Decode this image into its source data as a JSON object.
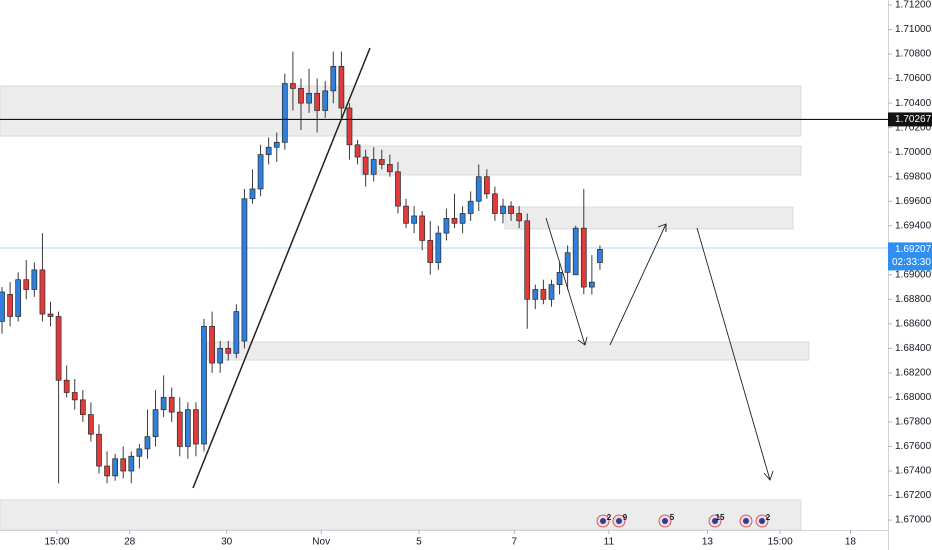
{
  "chart_data": {
    "type": "candlestick",
    "x": [
      0,
      1,
      2,
      3,
      4,
      5,
      6,
      7,
      8,
      9,
      10,
      11,
      12,
      13,
      14,
      15,
      16,
      17,
      18,
      19,
      20,
      21,
      22,
      23,
      24,
      25,
      26,
      27,
      28,
      29,
      30,
      31,
      32,
      33,
      34,
      35,
      36,
      37,
      38,
      39,
      40,
      41,
      42,
      43,
      44,
      45,
      46,
      47,
      48,
      49,
      50,
      51,
      52,
      53,
      54,
      55,
      56,
      57,
      58,
      59,
      60,
      61,
      62,
      63,
      64,
      65,
      66,
      67,
      68,
      69,
      70,
      71,
      72,
      73,
      74
    ],
    "open": [
      1.6862,
      1.6884,
      1.6866,
      1.6896,
      1.6888,
      1.6904,
      1.6868,
      1.6866,
      1.6814,
      1.6804,
      1.6798,
      1.6786,
      1.677,
      1.6744,
      1.6736,
      1.675,
      1.674,
      1.6752,
      1.6758,
      1.6768,
      1.679,
      1.68,
      1.6788,
      1.676,
      1.679,
      1.6762,
      1.6858,
      1.6828,
      1.684,
      1.6836,
      1.6846,
      1.6962,
      1.697,
      1.6998,
      1.7004,
      1.7008,
      1.7056,
      1.7052,
      1.704,
      1.7048,
      1.7034,
      1.705,
      1.707,
      1.7036,
      1.7006,
      1.6996,
      1.6982,
      1.6994,
      1.699,
      1.6984,
      1.6956,
      1.6942,
      1.6948,
      1.6928,
      1.691,
      1.6934,
      1.6946,
      1.6942,
      1.695,
      1.696,
      1.698,
      1.6966,
      1.695,
      1.6956,
      1.695,
      1.6944,
      1.688,
      1.6888,
      1.688,
      1.6892,
      1.6902,
      1.69,
      1.6938,
      1.689,
      1.691
    ],
    "high": [
      1.689,
      1.6894,
      1.6902,
      1.6912,
      1.691,
      1.6934,
      1.6878,
      1.687,
      1.6826,
      1.6815,
      1.6806,
      1.6796,
      1.6778,
      1.6756,
      1.6754,
      1.676,
      1.6756,
      1.6762,
      1.679,
      1.6806,
      1.6818,
      1.6808,
      1.68,
      1.6796,
      1.6796,
      1.6864,
      1.687,
      1.6846,
      1.6846,
      1.6876,
      1.697,
      1.6986,
      1.7006,
      1.7012,
      1.7016,
      1.7064,
      1.7082,
      1.706,
      1.7068,
      1.706,
      1.7058,
      1.7082,
      1.7082,
      1.704,
      1.701,
      1.7002,
      1.7004,
      1.7002,
      1.6998,
      1.6992,
      1.6962,
      1.6956,
      1.6952,
      1.6944,
      1.694,
      1.6954,
      1.6966,
      1.6956,
      1.6968,
      1.699,
      1.6986,
      1.6972,
      1.6962,
      1.696,
      1.6956,
      1.695,
      1.6892,
      1.6896,
      1.6896,
      1.691,
      1.6924,
      1.694,
      1.697,
      1.6916,
      1.6924
    ],
    "low": [
      1.6852,
      1.6858,
      1.6862,
      1.688,
      1.6882,
      1.6862,
      1.6858,
      1.673,
      1.68,
      1.679,
      1.678,
      1.6764,
      1.6738,
      1.673,
      1.6732,
      1.6734,
      1.673,
      1.6742,
      1.675,
      1.676,
      1.6784,
      1.678,
      1.6752,
      1.675,
      1.6752,
      1.6756,
      1.682,
      1.682,
      1.683,
      1.6832,
      1.684,
      1.6958,
      1.6964,
      1.699,
      1.6992,
      1.7002,
      1.7034,
      1.7018,
      1.7032,
      1.7016,
      1.7028,
      1.704,
      1.7028,
      1.6994,
      1.699,
      1.6972,
      1.6976,
      1.6986,
      1.698,
      1.695,
      1.6938,
      1.6934,
      1.692,
      1.69,
      1.6904,
      1.6928,
      1.6938,
      1.6934,
      1.6944,
      1.6952,
      1.6962,
      1.6944,
      1.6942,
      1.6944,
      1.6938,
      1.6856,
      1.6872,
      1.6876,
      1.6874,
      1.6884,
      1.6888,
      1.69,
      1.6884,
      1.6884,
      1.6904
    ],
    "close": [
      1.6886,
      1.6866,
      1.6896,
      1.6888,
      1.6904,
      1.6868,
      1.6866,
      1.6814,
      1.6804,
      1.6798,
      1.6786,
      1.677,
      1.6744,
      1.6736,
      1.675,
      1.674,
      1.6752,
      1.6758,
      1.6768,
      1.679,
      1.68,
      1.6788,
      1.676,
      1.679,
      1.6762,
      1.6858,
      1.6828,
      1.684,
      1.6836,
      1.687,
      1.6962,
      1.697,
      1.6998,
      1.7004,
      1.7008,
      1.7056,
      1.7052,
      1.704,
      1.7048,
      1.7034,
      1.705,
      1.707,
      1.7036,
      1.7006,
      1.6996,
      1.6982,
      1.6994,
      1.699,
      1.6984,
      1.6956,
      1.6942,
      1.6948,
      1.6928,
      1.691,
      1.6934,
      1.6946,
      1.6942,
      1.695,
      1.696,
      1.698,
      1.6966,
      1.695,
      1.6956,
      1.695,
      1.6944,
      1.688,
      1.6888,
      1.688,
      1.6892,
      1.6902,
      1.6918,
      1.6938,
      1.689,
      1.6894,
      1.69207
    ],
    "up_color": "#2f7fdc",
    "down_color": "#e03b3b",
    "xlim": [
      -0.25,
      109.65
    ],
    "xticks": [
      {
        "value": 6.8,
        "label": "15:00"
      },
      {
        "value": 15.8,
        "label": "28"
      },
      {
        "value": 27.8,
        "label": "30"
      },
      {
        "value": 39.5,
        "label": "Nov"
      },
      {
        "value": 51.6,
        "label": "5"
      },
      {
        "value": 63.4,
        "label": "7"
      },
      {
        "value": 75.1,
        "label": "11"
      },
      {
        "value": 87.3,
        "label": "13"
      },
      {
        "value": 96.3,
        "label": "15:00"
      },
      {
        "value": 105,
        "label": "18"
      }
    ],
    "ylim": [
      1.66935,
      1.71241
    ],
    "yticks": [
      {
        "value": 1.712,
        "label": "1.71200"
      },
      {
        "value": 1.71,
        "label": "1.71000"
      },
      {
        "value": 1.708,
        "label": "1.70800"
      },
      {
        "value": 1.706,
        "label": "1.70600"
      },
      {
        "value": 1.704,
        "label": "1.70400"
      },
      {
        "value": 1.702,
        "label": "1.70200"
      },
      {
        "value": 1.7,
        "label": "1.70000"
      },
      {
        "value": 1.698,
        "label": "1.69800"
      },
      {
        "value": 1.696,
        "label": "1.69600"
      },
      {
        "value": 1.694,
        "label": "1.69400"
      },
      {
        "value": 1.692,
        "label": "1.69200"
      },
      {
        "value": 1.69,
        "label": "1.69000"
      },
      {
        "value": 1.688,
        "label": "1.68800"
      },
      {
        "value": 1.686,
        "label": "1.68600"
      },
      {
        "value": 1.684,
        "label": "1.68400"
      },
      {
        "value": 1.682,
        "label": "1.68200"
      },
      {
        "value": 1.68,
        "label": "1.68000"
      },
      {
        "value": 1.678,
        "label": "1.67800"
      },
      {
        "value": 1.676,
        "label": "1.67600"
      },
      {
        "value": 1.674,
        "label": "1.67400"
      },
      {
        "value": 1.672,
        "label": "1.67200"
      },
      {
        "value": 1.67,
        "label": "1.67000"
      }
    ],
    "price_line": {
      "value": 1.70267
    },
    "last_price": {
      "value": 1.69207,
      "countdown": "02:33:30"
    },
    "events": [
      2,
      9,
      5,
      15,
      2
    ],
    "grid": false
  }
}
